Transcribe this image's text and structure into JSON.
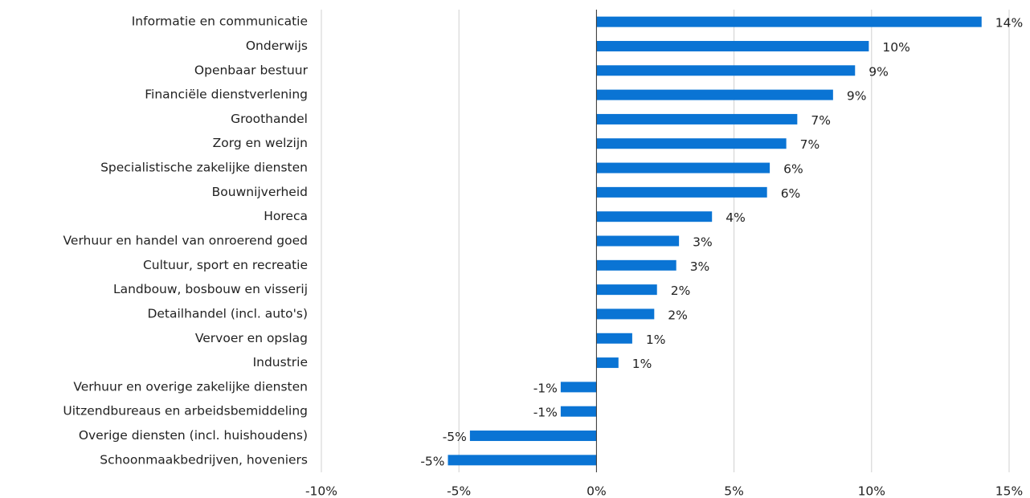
{
  "chart_data": {
    "type": "barh",
    "categories": [
      "Informatie en communicatie",
      "Onderwijs",
      "Openbaar bestuur",
      "Financiële dienstverlening",
      "Groothandel",
      "Zorg en welzijn",
      "Specialistische zakelijke diensten",
      "Bouwnijverheid",
      "Horeca",
      "Verhuur en handel van onroerend goed",
      "Cultuur, sport en recreatie",
      "Landbouw, bosbouw en visserij",
      "Detailhandel (incl. auto's)",
      "Vervoer en opslag",
      "Industrie",
      "Verhuur en overige zakelijke diensten",
      "Uitzendbureaus en arbeidsbemiddeling",
      "Overige diensten (incl. huishoudens)",
      "Schoonmaakbedrijven, hoveniers"
    ],
    "values": [
      14.0,
      9.9,
      9.4,
      8.6,
      7.3,
      6.9,
      6.3,
      6.2,
      4.2,
      3.0,
      2.9,
      2.2,
      2.1,
      1.3,
      0.8,
      -1.3,
      -1.3,
      -4.6,
      -5.4
    ],
    "value_labels": [
      "14%",
      "10%",
      "9%",
      "9%",
      "7%",
      "7%",
      "6%",
      "6%",
      "4%",
      "3%",
      "3%",
      "2%",
      "2%",
      "1%",
      "1%",
      "-1%",
      "-1%",
      "-5%",
      "-5%"
    ],
    "color": "#0a74d4",
    "xlim": [
      -10,
      15
    ],
    "xticks": [
      {
        "value": -10,
        "label": "-10%"
      },
      {
        "value": -5,
        "label": "-5%"
      },
      {
        "value": 0,
        "label": "0%"
      },
      {
        "value": 5,
        "label": "5%"
      },
      {
        "value": 10,
        "label": "10%"
      },
      {
        "value": 15,
        "label": "15%"
      }
    ],
    "grid": true
  }
}
